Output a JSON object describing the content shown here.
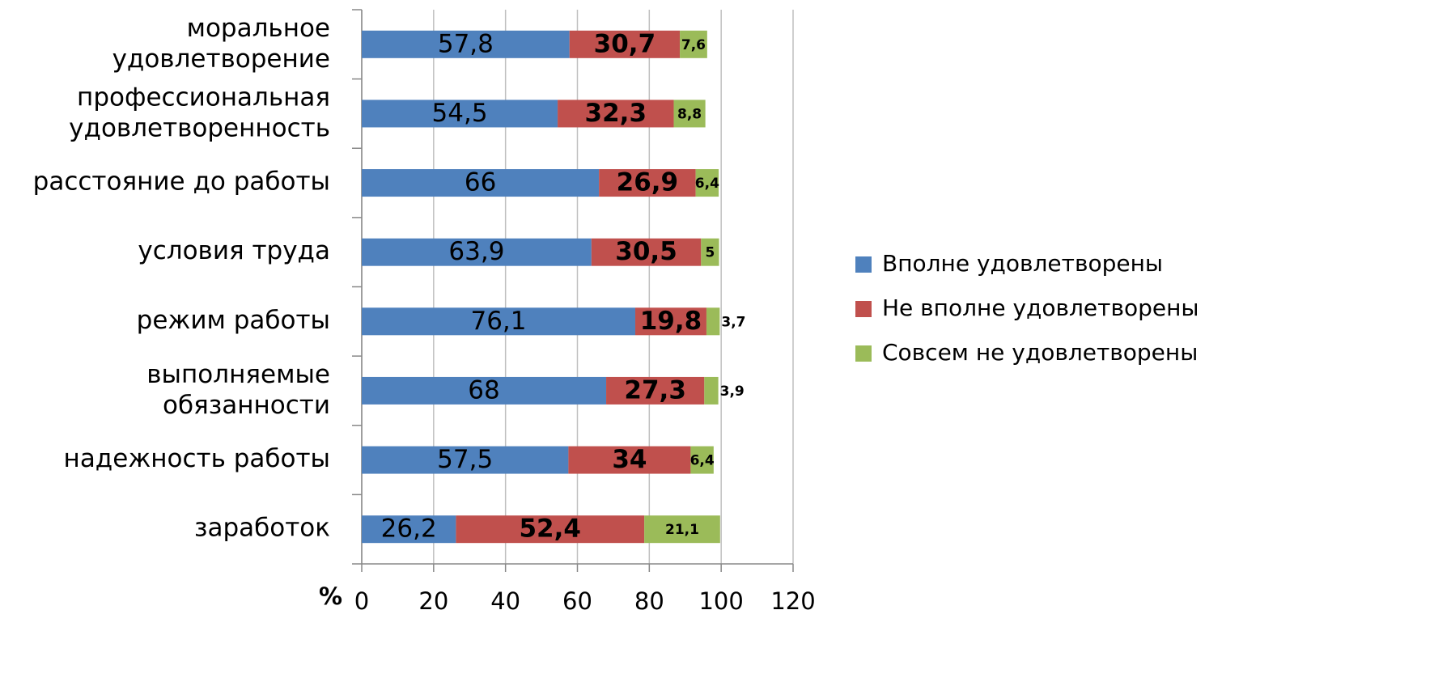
{
  "chart_data": {
    "type": "stacked_barh",
    "categories": [
      "моральное\nудовлетворение",
      "профессиональная\nудовлетворенность",
      "расстояние до работы",
      "условия труда",
      "режим работы",
      "выполняемые\nобязанности",
      "надежность работы",
      "заработок"
    ],
    "series": [
      {
        "name": "Вполне удовлетворены",
        "color": "#4f81bd",
        "values": [
          57.8,
          54.5,
          66,
          63.9,
          76.1,
          68,
          57.5,
          26.2
        ],
        "value_labels": [
          "57,8",
          "54,5",
          "66",
          "63,9",
          "76,1",
          "68",
          "57,5",
          "26,2"
        ]
      },
      {
        "name": "Не вполне удовлетворены",
        "color": "#c0504d",
        "values": [
          30.7,
          32.3,
          26.9,
          30.5,
          19.8,
          27.3,
          34,
          52.4
        ],
        "value_labels": [
          "30,7",
          "32,3",
          "26,9",
          "30,5",
          "19,8",
          "27,3",
          "34",
          "52,4"
        ]
      },
      {
        "name": "Совсем не удовлетворены",
        "color": "#9bbb59",
        "values": [
          7.6,
          8.8,
          6.4,
          5,
          3.7,
          3.9,
          6.4,
          21.1
        ],
        "value_labels": [
          "7,6",
          "8,8",
          "6,4",
          "5",
          "3,7",
          "3,9",
          "6,4",
          "21,1"
        ]
      }
    ],
    "xlabel": "%",
    "xlim": [
      0,
      120
    ],
    "xticks": [
      0,
      20,
      40,
      60,
      80,
      100,
      120
    ],
    "grid": true,
    "legend": "right"
  }
}
